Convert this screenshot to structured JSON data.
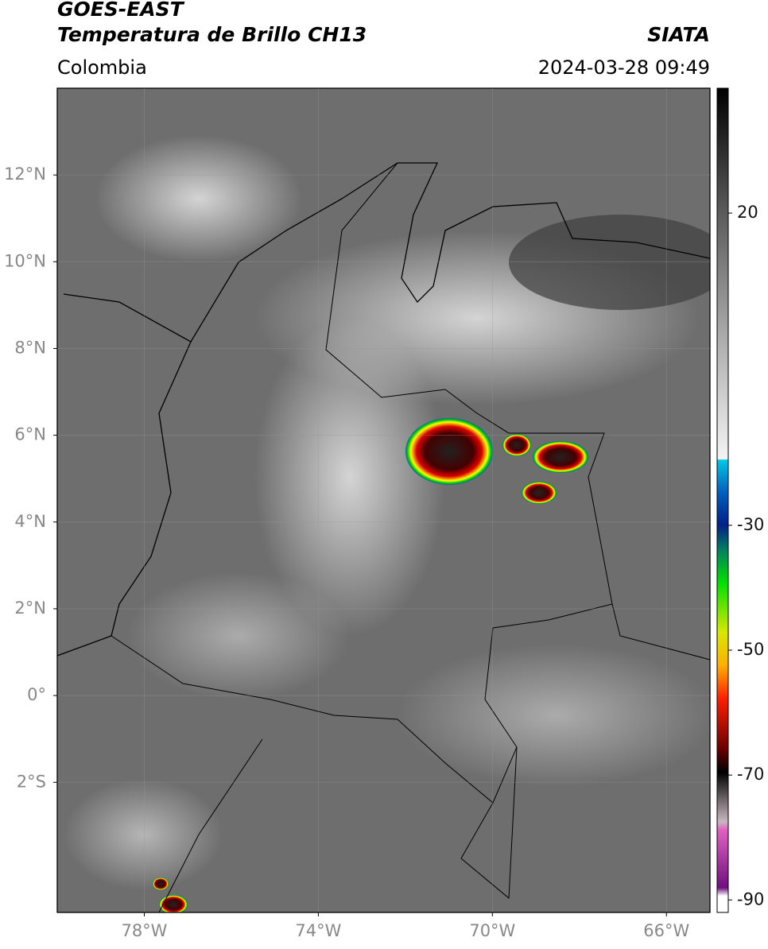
{
  "header": {
    "title": "GOES-EAST",
    "subtitle": "Temperatura de Brillo CH13",
    "source": "SIATA",
    "region": "Colombia",
    "timestamp": "2024-03-28 09:49"
  },
  "map": {
    "xlim": [
      -80,
      -65
    ],
    "ylim": [
      -5,
      14
    ],
    "xticks": [
      {
        "value": -78,
        "label": "78°W"
      },
      {
        "value": -74,
        "label": "74°W"
      },
      {
        "value": -70,
        "label": "70°W"
      },
      {
        "value": -66,
        "label": "66°W"
      }
    ],
    "yticks": [
      {
        "value": 12,
        "label": "12°N"
      },
      {
        "value": 10,
        "label": "10°N"
      },
      {
        "value": 8,
        "label": "8°N"
      },
      {
        "value": 6,
        "label": "6°N"
      },
      {
        "value": 4,
        "label": "4°N"
      },
      {
        "value": 2,
        "label": "2°N"
      },
      {
        "value": 0,
        "label": "0°"
      },
      {
        "value": -2,
        "label": "2°S"
      }
    ],
    "grid": true
  },
  "colorbar": {
    "lim": [
      -92,
      40
    ],
    "ticks": [
      20,
      -30,
      -50,
      -70,
      -90
    ]
  }
}
